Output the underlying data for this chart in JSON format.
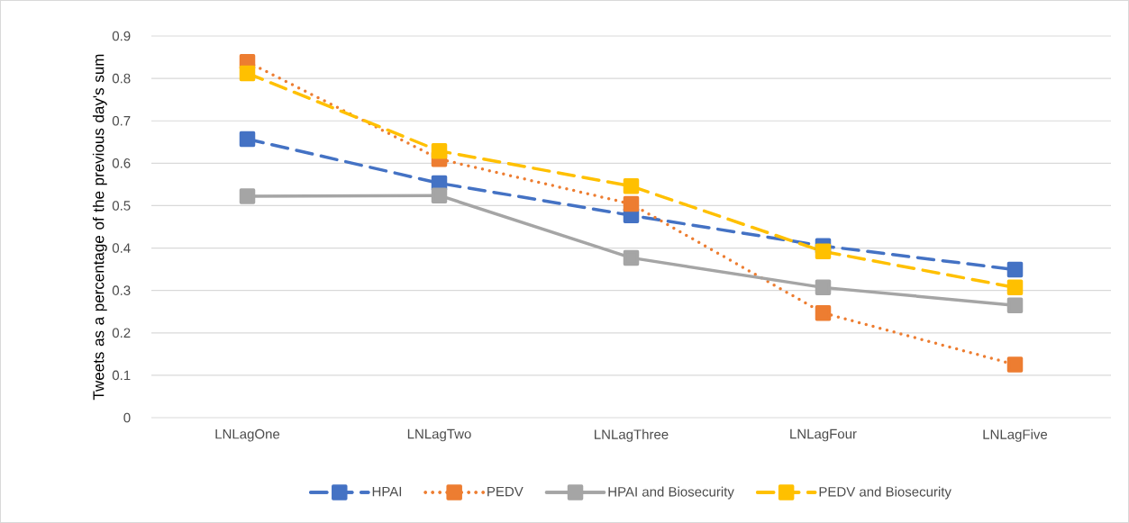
{
  "chart_data": {
    "type": "line",
    "ylabel": "Tweets as a percentage of the previous day's sum",
    "categories": [
      "LNLagOne",
      "LNLagTwo",
      "LNLagThree",
      "LNLagFour",
      "LNLagFive"
    ],
    "series": [
      {
        "name": "HPAI",
        "color": "#4472c4",
        "line_style": "dashed",
        "values": [
          0.657,
          0.553,
          0.477,
          0.405,
          0.349
        ]
      },
      {
        "name": "PEDV",
        "color": "#ed7d31",
        "line_style": "dotted",
        "values": [
          0.839,
          0.61,
          0.504,
          0.247,
          0.125
        ]
      },
      {
        "name": "HPAI and Biosecurity",
        "color": "#a5a5a5",
        "line_style": "solid",
        "values": [
          0.522,
          0.524,
          0.377,
          0.307,
          0.265
        ]
      },
      {
        "name": "PEDV and Biosecurity",
        "color": "#ffc000",
        "line_style": "dashed",
        "values": [
          0.812,
          0.629,
          0.546,
          0.392,
          0.307
        ]
      }
    ],
    "ylim": [
      0,
      0.9
    ],
    "yticks": [
      0,
      0.1,
      0.2,
      0.3,
      0.4,
      0.5,
      0.6,
      0.7,
      0.8,
      0.9
    ],
    "grid": "y",
    "legend": "bottom",
    "marker": "square"
  }
}
